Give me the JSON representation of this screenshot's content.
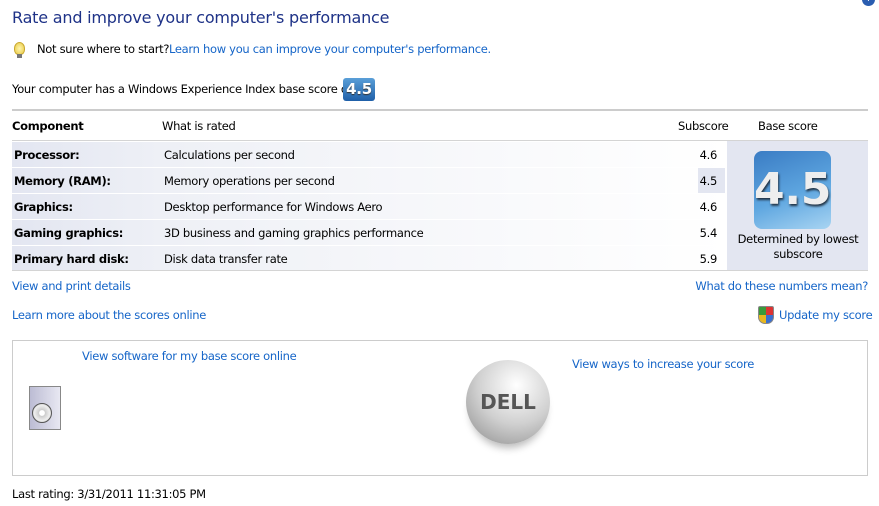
{
  "title": "Rate and improve your computer's performance",
  "tip": {
    "icon": "lightbulb-icon",
    "text": "Not sure where to start?",
    "link": "Learn how you can improve your computer's performance."
  },
  "base_score_text": "Your computer has a Windows Experience Index base score of",
  "base_score": "4.5",
  "table": {
    "headers": [
      "Component",
      "What is rated",
      "Subscore",
      "Base score"
    ],
    "rows": [
      {
        "component": "Processor:",
        "rated": "Calculations per second",
        "subscore": "4.6"
      },
      {
        "component": "Memory (RAM):",
        "rated": "Memory operations per second",
        "subscore": "4.5"
      },
      {
        "component": "Graphics:",
        "rated": "Desktop performance for Windows Aero",
        "subscore": "4.6"
      },
      {
        "component": "Gaming graphics:",
        "rated": "3D business and gaming graphics performance",
        "subscore": "5.4"
      },
      {
        "component": "Primary hard disk:",
        "rated": "Disk data transfer rate",
        "subscore": "5.9"
      }
    ],
    "base_caption": "Determined by lowest subscore"
  },
  "links": {
    "view_print": "View and print details",
    "what_mean": "What do these numbers mean?",
    "learn_more": "Learn more about the scores online",
    "update": "Update my score"
  },
  "panel": {
    "software_link": "View software for my base score online",
    "increase_link": "View ways to increase your score",
    "logo": "DELL"
  },
  "last_rating": "Last rating: 3/31/2011 11:31:05 PM"
}
